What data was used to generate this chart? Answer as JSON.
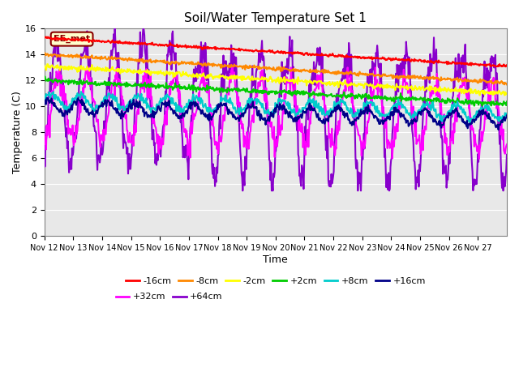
{
  "title": "Soil/Water Temperature Set 1",
  "xlabel": "Time",
  "ylabel": "Temperature (C)",
  "ylim": [
    0,
    16
  ],
  "n_days": 16,
  "xtick_labels": [
    "Nov 12",
    "Nov 13",
    "Nov 14",
    "Nov 15",
    "Nov 16",
    "Nov 17",
    "Nov 18",
    "Nov 19",
    "Nov 20",
    "Nov 21",
    "Nov 22",
    "Nov 23",
    "Nov 24",
    "Nov 25",
    "Nov 26",
    "Nov 27"
  ],
  "ytick_values": [
    0,
    2,
    4,
    6,
    8,
    10,
    12,
    14,
    16
  ],
  "annotation_text": "EE_met",
  "annotation_color": "#8B0000",
  "annotation_bg": "#ffffcc",
  "background_color": "#e8e8e8",
  "series_order": [
    "-16cm",
    "-8cm",
    "-2cm",
    "+2cm",
    "+8cm",
    "+16cm",
    "+32cm",
    "+64cm"
  ],
  "series_colors": [
    "#ff0000",
    "#ff8800",
    "#ffff00",
    "#00cc00",
    "#00cccc",
    "#000088",
    "#ff00ff",
    "#8800cc"
  ],
  "series_linewidths": [
    1.5,
    1.5,
    1.5,
    1.5,
    1.5,
    1.5,
    1.5,
    1.5
  ]
}
